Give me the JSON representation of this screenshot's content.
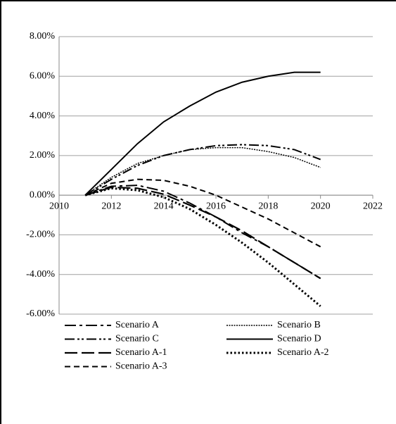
{
  "chart_data": {
    "type": "line",
    "x": [
      2011,
      2012,
      2013,
      2014,
      2015,
      2016,
      2017,
      2018,
      2019,
      2020
    ],
    "xlim": [
      2010,
      2022
    ],
    "xticks": [
      2010,
      2012,
      2014,
      2016,
      2018,
      2020,
      2022
    ],
    "ylim": [
      -6,
      8
    ],
    "yticks": [
      {
        "value": -6,
        "label": "-6.00%"
      },
      {
        "value": -4,
        "label": "-4.00%"
      },
      {
        "value": -2,
        "label": "-2.00%"
      },
      {
        "value": 0,
        "label": "0.00%"
      },
      {
        "value": 2,
        "label": "2.00%"
      },
      {
        "value": 4,
        "label": "4.00%"
      },
      {
        "value": 6,
        "label": "6.00%"
      },
      {
        "value": 8,
        "label": "8.00%"
      }
    ],
    "grid": true,
    "legend": "bottom",
    "series": [
      {
        "name": "Scenario A",
        "color": "#000000",
        "style": "dash-dot",
        "values": [
          0,
          0.45,
          0.5,
          0.2,
          -0.4,
          -1.1,
          -1.9,
          -2.6,
          -3.4,
          -4.2
        ]
      },
      {
        "name": "Scenario B",
        "color": "#000000",
        "style": "fine-dot",
        "values": [
          0,
          0.9,
          1.6,
          2.0,
          2.3,
          2.4,
          2.4,
          2.2,
          1.9,
          1.4
        ]
      },
      {
        "name": "Scenario C",
        "color": "#000000",
        "style": "dash-dot-dot",
        "values": [
          0,
          0.8,
          1.5,
          2.0,
          2.3,
          2.5,
          2.55,
          2.5,
          2.3,
          1.8
        ]
      },
      {
        "name": "Scenario D",
        "color": "#000000",
        "style": "solid",
        "values": [
          0,
          1.3,
          2.6,
          3.7,
          4.5,
          5.2,
          5.7,
          6.0,
          6.2,
          6.2
        ]
      },
      {
        "name": "Scenario A-1",
        "color": "#000000",
        "style": "long-dash",
        "values": [
          0,
          0.4,
          0.35,
          0.05,
          -0.5,
          -1.1,
          -1.8,
          -2.6,
          -3.4,
          -4.2
        ]
      },
      {
        "name": "Scenario A-2",
        "color": "#000000",
        "style": "heavy-dot",
        "values": [
          0,
          0.35,
          0.25,
          -0.1,
          -0.7,
          -1.5,
          -2.4,
          -3.4,
          -4.5,
          -5.6
        ]
      },
      {
        "name": "Scenario A-3",
        "color": "#000000",
        "style": "dash",
        "values": [
          0,
          0.6,
          0.8,
          0.75,
          0.45,
          0.0,
          -0.6,
          -1.2,
          -1.9,
          -2.6
        ]
      }
    ]
  }
}
